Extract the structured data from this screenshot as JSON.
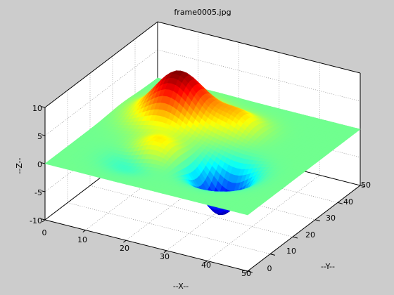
{
  "title": "frame0005.jpg",
  "chart_data": {
    "type": "surface",
    "title": "frame0005.jpg",
    "xlabel": "--X--",
    "ylabel": "--Y--",
    "zlabel": "--Z--",
    "xlim": [
      0,
      50
    ],
    "ylim": [
      0,
      50
    ],
    "zlim": [
      -10,
      10
    ],
    "x_ticks": [
      "0",
      "10",
      "20",
      "30",
      "40",
      "50"
    ],
    "y_ticks": [
      "0",
      "10",
      "20",
      "30",
      "40",
      "50"
    ],
    "z_ticks": [
      "-10",
      "-5",
      "0",
      "5",
      "10"
    ],
    "grid": true,
    "colormap": "jet",
    "colors": {
      "background": "#cccccc",
      "axes_back": "#ffffff",
      "surface_zero": "#40ffbf",
      "peak_high": "#800000",
      "trough_low": "#00008f"
    },
    "features": [
      {
        "kind": "peak",
        "x": 14,
        "y": 34,
        "z": 8.5
      },
      {
        "kind": "peak",
        "x": 18,
        "y": 16,
        "z": 3.5
      },
      {
        "kind": "peak",
        "x": 27,
        "y": 36,
        "z": 3.0
      },
      {
        "kind": "trough",
        "x": 16,
        "y": 12,
        "z": -2.0
      },
      {
        "kind": "trough",
        "x": 34,
        "y": 17,
        "z": -8.0
      }
    ]
  }
}
